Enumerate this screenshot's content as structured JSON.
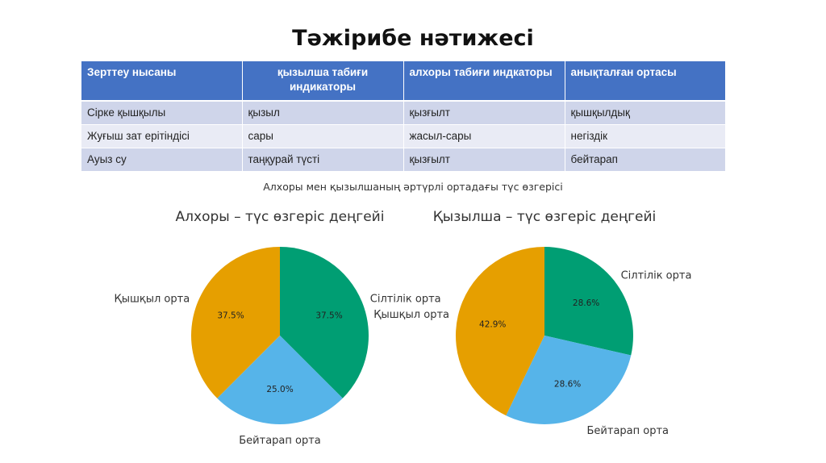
{
  "title": "Тәжірибе нәтижесі",
  "table": {
    "headers": [
      "Зерттеу нысаны",
      "қызылша табиғи индикаторы",
      "алхоры табиғи индкаторы",
      "анықталған ортасы"
    ],
    "rows": [
      [
        "Сірке қышқылы",
        "қызыл",
        "қызғылт",
        "қышқылдық"
      ],
      [
        "Жуғыш зат ерітіндісі",
        "сары",
        "жасыл-сары",
        "негіздік"
      ],
      [
        "Ауыз су",
        "таңқурай түсті",
        "қызғылт",
        "бейтарап"
      ]
    ]
  },
  "charts_title": "Алхоры мен қызылшаның әртүрлі ортадағы түс өзгерісі",
  "colors": {
    "header_bg": "#4472c4",
    "row_odd": "#cfd5ea",
    "row_even": "#e9ebf5",
    "green": "#009e73",
    "blue": "#56b4e9",
    "orange": "#e69f00"
  },
  "chart_data": [
    {
      "type": "pie",
      "title": "Алхоры – түс өзгеріс деңгейі",
      "categories": [
        "Сілтілік орта",
        "Бейтарап орта",
        "Қышқыл орта"
      ],
      "values": [
        37.5,
        25.0,
        37.5
      ],
      "labels": [
        "37.5%",
        "25.0%",
        "37.5%"
      ],
      "colors": [
        "#009e73",
        "#56b4e9",
        "#e69f00"
      ],
      "start": "top, clockwise"
    },
    {
      "type": "pie",
      "title": "Қызылша – түс өзгеріс деңгейі",
      "categories": [
        "Сілтілік орта",
        "Бейтарап орта",
        "Қышқыл орта"
      ],
      "values": [
        28.6,
        28.6,
        42.9
      ],
      "labels": [
        "28.6%",
        "28.6%",
        "42.9%"
      ],
      "colors": [
        "#009e73",
        "#56b4e9",
        "#e69f00"
      ],
      "start": "top, clockwise"
    }
  ]
}
